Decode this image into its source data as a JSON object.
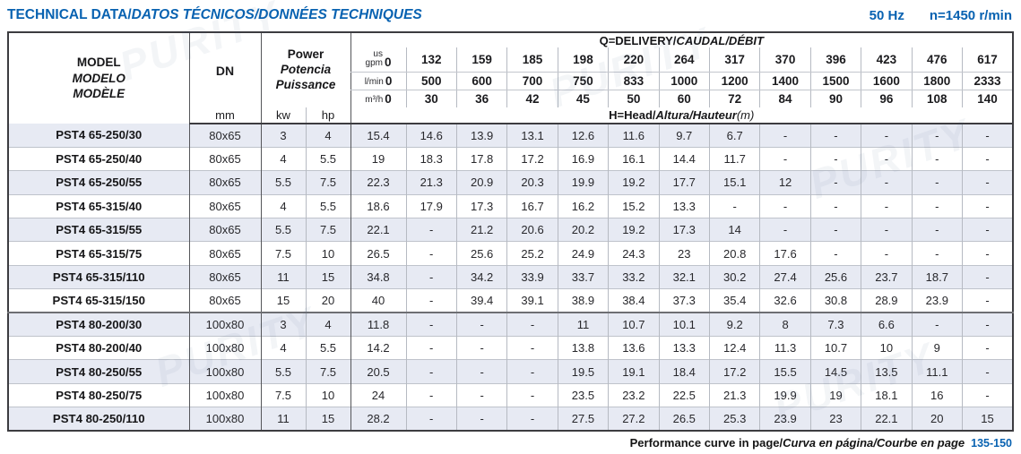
{
  "header": {
    "title_en": "TECHNICAL DATA/",
    "title_intl": "DATOS TÉCNICOS/DONNÉES TECHNIQUES",
    "frequency": "50 Hz",
    "speed": "n=1450 r/min"
  },
  "watermark": {
    "text": "PURITY"
  },
  "table": {
    "header": {
      "model": [
        "MODEL",
        "MODELO",
        "MODÈLE"
      ],
      "dn_label": "DN",
      "dn_unit": "mm",
      "power": [
        "Power",
        "Potencia",
        "Puissance"
      ],
      "power_units": [
        "kw",
        "hp"
      ],
      "delivery_bold": "Q=DELIVERY/",
      "delivery_italic": "CAUDAL/DÉBIT",
      "head_bold": "H=Head/",
      "head_italic": "Altura/Hauteur",
      "head_unit": "(m)",
      "flow_rows": [
        {
          "unit": "us\ngpm",
          "values": [
            "0",
            "132",
            "159",
            "185",
            "198",
            "220",
            "264",
            "317",
            "370",
            "396",
            "423",
            "476",
            "617"
          ]
        },
        {
          "unit": "l/min",
          "values": [
            "0",
            "500",
            "600",
            "700",
            "750",
            "833",
            "1000",
            "1200",
            "1400",
            "1500",
            "1600",
            "1800",
            "2333"
          ]
        },
        {
          "unit": "m³/h",
          "values": [
            "0",
            "30",
            "36",
            "42",
            "45",
            "50",
            "60",
            "72",
            "84",
            "90",
            "96",
            "108",
            "140"
          ]
        }
      ]
    },
    "rows": [
      {
        "series": "PST4 65",
        "model": "PST4 65-250/30",
        "dn": "80x65",
        "kw": "3",
        "hp": "4",
        "head": [
          "15.4",
          "14.6",
          "13.9",
          "13.1",
          "12.6",
          "11.6",
          "9.7",
          "6.7",
          "-",
          "-",
          "-",
          "-",
          "-"
        ]
      },
      {
        "series": "PST4 65",
        "model": "PST4 65-250/40",
        "dn": "80x65",
        "kw": "4",
        "hp": "5.5",
        "head": [
          "19",
          "18.3",
          "17.8",
          "17.2",
          "16.9",
          "16.1",
          "14.4",
          "11.7",
          "-",
          "-",
          "-",
          "-",
          "-"
        ]
      },
      {
        "series": "PST4 65",
        "model": "PST4 65-250/55",
        "dn": "80x65",
        "kw": "5.5",
        "hp": "7.5",
        "head": [
          "22.3",
          "21.3",
          "20.9",
          "20.3",
          "19.9",
          "19.2",
          "17.7",
          "15.1",
          "12",
          "-",
          "-",
          "-",
          "-"
        ]
      },
      {
        "series": "PST4 65",
        "model": "PST4 65-315/40",
        "dn": "80x65",
        "kw": "4",
        "hp": "5.5",
        "head": [
          "18.6",
          "17.9",
          "17.3",
          "16.7",
          "16.2",
          "15.2",
          "13.3",
          "-",
          "-",
          "-",
          "-",
          "-",
          "-"
        ]
      },
      {
        "series": "PST4 65",
        "model": "PST4 65-315/55",
        "dn": "80x65",
        "kw": "5.5",
        "hp": "7.5",
        "head": [
          "22.1",
          "-",
          "21.2",
          "20.6",
          "20.2",
          "19.2",
          "17.3",
          "14",
          "-",
          "-",
          "-",
          "-",
          "-"
        ]
      },
      {
        "series": "PST4 65",
        "model": "PST4 65-315/75",
        "dn": "80x65",
        "kw": "7.5",
        "hp": "10",
        "head": [
          "26.5",
          "-",
          "25.6",
          "25.2",
          "24.9",
          "24.3",
          "23",
          "20.8",
          "17.6",
          "-",
          "-",
          "-",
          "-"
        ]
      },
      {
        "series": "PST4 65",
        "model": "PST4 65-315/110",
        "dn": "80x65",
        "kw": "11",
        "hp": "15",
        "head": [
          "34.8",
          "-",
          "34.2",
          "33.9",
          "33.7",
          "33.2",
          "32.1",
          "30.2",
          "27.4",
          "25.6",
          "23.7",
          "18.7",
          "-"
        ]
      },
      {
        "series": "PST4 65",
        "model": "PST4 65-315/150",
        "dn": "80x65",
        "kw": "15",
        "hp": "20",
        "head": [
          "40",
          "-",
          "39.4",
          "39.1",
          "38.9",
          "38.4",
          "37.3",
          "35.4",
          "32.6",
          "30.8",
          "28.9",
          "23.9",
          "-"
        ]
      },
      {
        "series": "PST4 80",
        "model": "PST4 80-200/30",
        "dn": "100x80",
        "kw": "3",
        "hp": "4",
        "head": [
          "11.8",
          "-",
          "-",
          "-",
          "11",
          "10.7",
          "10.1",
          "9.2",
          "8",
          "7.3",
          "6.6",
          "-",
          "-"
        ]
      },
      {
        "series": "PST4 80",
        "model": "PST4 80-200/40",
        "dn": "100x80",
        "kw": "4",
        "hp": "5.5",
        "head": [
          "14.2",
          "-",
          "-",
          "-",
          "13.8",
          "13.6",
          "13.3",
          "12.4",
          "11.3",
          "10.7",
          "10",
          "9",
          "-"
        ]
      },
      {
        "series": "PST4 80",
        "model": "PST4 80-250/55",
        "dn": "100x80",
        "kw": "5.5",
        "hp": "7.5",
        "head": [
          "20.5",
          "-",
          "-",
          "-",
          "19.5",
          "19.1",
          "18.4",
          "17.2",
          "15.5",
          "14.5",
          "13.5",
          "11.1",
          "-"
        ]
      },
      {
        "series": "PST4 80",
        "model": "PST4 80-250/75",
        "dn": "100x80",
        "kw": "7.5",
        "hp": "10",
        "head": [
          "24",
          "-",
          "-",
          "-",
          "23.5",
          "23.2",
          "22.5",
          "21.3",
          "19.9",
          "19",
          "18.1",
          "16",
          "-"
        ]
      },
      {
        "series": "PST4 80",
        "model": "PST4 80-250/110",
        "dn": "100x80",
        "kw": "11",
        "hp": "15",
        "head": [
          "28.2",
          "-",
          "-",
          "-",
          "27.5",
          "27.2",
          "26.5",
          "25.3",
          "23.9",
          "23",
          "22.1",
          "20",
          "15"
        ]
      }
    ]
  },
  "footer": {
    "text_en": "Performance curve in page/",
    "text_intl": "Curva en página/Courbe en page",
    "pages": "135-150"
  }
}
